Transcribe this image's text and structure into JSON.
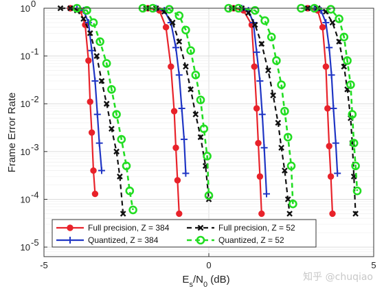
{
  "chart_data": {
    "type": "line",
    "xlabel": "E_s/N_0 (dB)",
    "ylabel": "Frame Error Rate",
    "xlim": [
      -5,
      5
    ],
    "ylim_log10": [
      -5.2,
      0
    ],
    "y_scale": "log",
    "x_ticks": [
      -5,
      0,
      5
    ],
    "x_tick_labels": [
      "-5",
      "0",
      "5"
    ],
    "y_ticks_exp": [
      0,
      -1,
      -2,
      -3,
      -4,
      -5
    ],
    "y_tick_labels": [
      "10",
      "10",
      "10",
      "10",
      "10",
      "10"
    ],
    "y_tick_exponents": [
      "0",
      "-1",
      "-2",
      "-3",
      "-4",
      "-5"
    ],
    "grid": true,
    "legend_position": "bottom",
    "watermark": "知乎 @chuqiao",
    "series": [
      {
        "name": "Full precision, Z = 384",
        "color": "#e8222a",
        "marker": "circle",
        "groups": [
          [
            [
              -4.2,
              1
            ],
            [
              -3.9,
              0.9
            ],
            [
              -3.75,
              0.45
            ],
            [
              -3.65,
              0.08
            ],
            [
              -3.6,
              0.011
            ],
            [
              -3.55,
              0.0025
            ],
            [
              -3.5,
              0.0004
            ],
            [
              -3.45,
              0.00013
            ]
          ],
          [
            [
              -1.85,
              1
            ],
            [
              -1.5,
              0.9
            ],
            [
              -1.3,
              0.4
            ],
            [
              -1.15,
              0.06
            ],
            [
              -1.05,
              0.007
            ],
            [
              -1.0,
              0.0012
            ],
            [
              -0.95,
              0.00025
            ],
            [
              -0.9,
              5e-05
            ]
          ],
          [
            [
              0.75,
              1
            ],
            [
              1.05,
              0.9
            ],
            [
              1.3,
              0.45
            ],
            [
              1.38,
              0.06
            ],
            [
              1.45,
              0.008
            ],
            [
              1.5,
              0.0015
            ],
            [
              1.55,
              0.0003
            ],
            [
              1.6,
              5e-05
            ]
          ],
          [
            [
              3.0,
              1
            ],
            [
              3.3,
              0.9
            ],
            [
              3.45,
              0.4
            ],
            [
              3.55,
              0.06
            ],
            [
              3.6,
              0.008
            ],
            [
              3.65,
              0.0013
            ],
            [
              3.7,
              0.0003
            ],
            [
              3.75,
              5e-05
            ]
          ]
        ]
      },
      {
        "name": "Quantized, Z = 384",
        "color": "#1f35c4",
        "marker": "plus",
        "groups": [
          [
            [
              -4.0,
              1
            ],
            [
              -3.8,
              0.9
            ],
            [
              -3.65,
              0.5
            ],
            [
              -3.55,
              0.13
            ],
            [
              -3.45,
              0.03
            ],
            [
              -3.38,
              0.006
            ],
            [
              -3.32,
              0.0015
            ],
            [
              -3.25,
              0.0004
            ]
          ],
          [
            [
              -1.6,
              1
            ],
            [
              -1.35,
              0.9
            ],
            [
              -1.15,
              0.5
            ],
            [
              -1.0,
              0.15
            ],
            [
              -0.9,
              0.04
            ],
            [
              -0.82,
              0.008
            ],
            [
              -0.75,
              0.0018
            ],
            [
              -0.7,
              0.00035
            ]
          ],
          [
            [
              1.0,
              1
            ],
            [
              1.2,
              0.9
            ],
            [
              1.35,
              0.5
            ],
            [
              1.45,
              0.12
            ],
            [
              1.55,
              0.03
            ],
            [
              1.62,
              0.006
            ],
            [
              1.68,
              0.0012
            ],
            [
              1.75,
              0.00013
            ]
          ],
          [
            [
              3.2,
              1
            ],
            [
              3.4,
              0.9
            ],
            [
              3.55,
              0.5
            ],
            [
              3.65,
              0.15
            ],
            [
              3.72,
              0.04
            ],
            [
              3.78,
              0.008
            ],
            [
              3.85,
              0.0015
            ],
            [
              3.9,
              0.00035
            ]
          ]
        ]
      },
      {
        "name": "Full precision, Z = 52",
        "color": "#111111",
        "marker": "x",
        "groups": [
          [
            [
              -4.5,
              1
            ],
            [
              -4.2,
              1
            ],
            [
              -4.0,
              0.9
            ],
            [
              -3.8,
              0.6
            ],
            [
              -3.6,
              0.3
            ],
            [
              -3.4,
              0.1
            ],
            [
              -3.25,
              0.03
            ],
            [
              -3.1,
              0.01
            ],
            [
              -2.95,
              0.003
            ],
            [
              -2.8,
              0.001
            ],
            [
              -2.7,
              0.0003
            ],
            [
              -2.6,
              5e-05
            ]
          ],
          [
            [
              -1.9,
              1
            ],
            [
              -1.6,
              1
            ],
            [
              -1.35,
              0.85
            ],
            [
              -1.1,
              0.5
            ],
            [
              -0.9,
              0.2
            ],
            [
              -0.7,
              0.06
            ],
            [
              -0.55,
              0.02
            ],
            [
              -0.4,
              0.006
            ],
            [
              -0.25,
              0.002
            ],
            [
              -0.1,
              0.0005
            ],
            [
              0.0,
              0.0001
            ]
          ],
          [
            [
              0.7,
              1
            ],
            [
              1.0,
              1
            ],
            [
              1.2,
              0.8
            ],
            [
              1.4,
              0.45
            ],
            [
              1.6,
              0.18
            ],
            [
              1.8,
              0.05
            ],
            [
              1.95,
              0.015
            ],
            [
              2.1,
              0.004
            ],
            [
              2.2,
              0.0012
            ],
            [
              2.3,
              0.0004
            ],
            [
              2.4,
              0.0001
            ],
            [
              2.45,
              5e-05
            ]
          ],
          [
            [
              3.0,
              1
            ],
            [
              3.3,
              1
            ],
            [
              3.55,
              0.85
            ],
            [
              3.75,
              0.5
            ],
            [
              3.95,
              0.2
            ],
            [
              4.1,
              0.06
            ],
            [
              4.2,
              0.02
            ],
            [
              4.3,
              0.005
            ],
            [
              4.35,
              0.0015
            ],
            [
              4.4,
              0.0003
            ],
            [
              4.45,
              5e-05
            ]
          ]
        ]
      },
      {
        "name": "Quantized, Z = 52",
        "color": "#22dd22",
        "marker": "circle-open",
        "groups": [
          [
            [
              -4.0,
              1
            ],
            [
              -3.7,
              0.9
            ],
            [
              -3.5,
              0.5
            ],
            [
              -3.3,
              0.2
            ],
            [
              -3.1,
              0.07
            ],
            [
              -2.95,
              0.02
            ],
            [
              -2.8,
              0.006
            ],
            [
              -2.65,
              0.0018
            ],
            [
              -2.5,
              0.0005
            ],
            [
              -2.4,
              0.00015
            ],
            [
              -2.3,
              6e-05
            ]
          ],
          [
            [
              -2.0,
              1
            ],
            [
              -1.7,
              1
            ],
            [
              -1.2,
              0.95
            ],
            [
              -0.9,
              0.7
            ],
            [
              -0.7,
              0.35
            ],
            [
              -0.55,
              0.13
            ],
            [
              -0.4,
              0.04
            ],
            [
              -0.25,
              0.012
            ],
            [
              -0.15,
              0.003
            ],
            [
              -0.05,
              0.0008
            ],
            [
              0.0,
              0.00012
            ]
          ],
          [
            [
              0.6,
              1
            ],
            [
              0.9,
              1
            ],
            [
              1.4,
              0.9
            ],
            [
              1.7,
              0.55
            ],
            [
              1.9,
              0.25
            ],
            [
              2.05,
              0.08
            ],
            [
              2.2,
              0.025
            ],
            [
              2.3,
              0.007
            ],
            [
              2.4,
              0.002
            ],
            [
              2.5,
              0.0005
            ],
            [
              2.55,
              8e-05
            ]
          ],
          [
            [
              2.8,
              1
            ],
            [
              3.2,
              1
            ],
            [
              3.7,
              0.95
            ],
            [
              3.95,
              0.6
            ],
            [
              4.1,
              0.25
            ],
            [
              4.2,
              0.08
            ],
            [
              4.3,
              0.025
            ],
            [
              4.35,
              0.006
            ],
            [
              4.4,
              0.0015
            ],
            [
              4.45,
              0.0005
            ],
            [
              4.5,
              0.00015
            ]
          ]
        ]
      }
    ]
  }
}
